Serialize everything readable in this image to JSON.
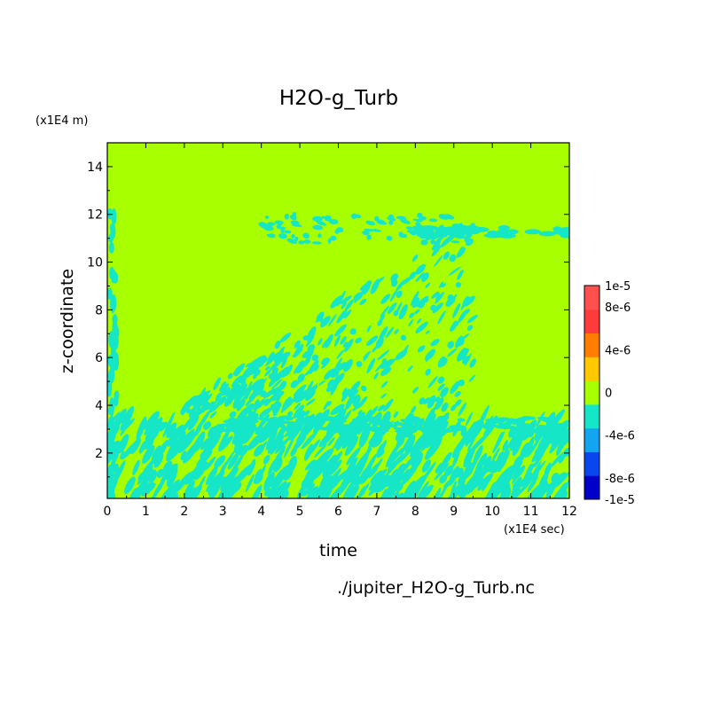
{
  "chart_data": {
    "type": "heatmap",
    "title": "H2O-g_Turb",
    "xlabel": "time",
    "ylabel": "z-coordinate",
    "x_unit": "(x1E4 sec)",
    "y_unit": "(x1E4 m)",
    "xlim": [
      0,
      12
    ],
    "ylim": [
      0.1,
      15
    ],
    "x_ticks": [
      "0",
      "1",
      "2",
      "3",
      "4",
      "5",
      "6",
      "7",
      "8",
      "9",
      "10",
      "11",
      "12"
    ],
    "y_ticks": [
      "2",
      "4",
      "6",
      "8",
      "10",
      "12",
      "14"
    ],
    "colorbar": {
      "range": [
        -1e-05,
        1e-05
      ],
      "tick_labels": [
        "1e-5",
        "8e-6",
        "4e-6",
        "0",
        "-4e-6",
        "-8e-6",
        "-1e-5"
      ],
      "colors": [
        "#0000c8",
        "#0a46f0",
        "#14a5f0",
        "#16e6c8",
        "#a8ff00",
        "#ffc800",
        "#ff7d00",
        "#ff3a3a",
        "#ff5050"
      ]
    },
    "field_description": "Values near 0 dominate; negative (~-2e-6) streaks in lower layer below z≈3.5 and in wavy bands between z≈4 and z≈12 for t between ~3 and ~9.5; persistent negative band at z≈11.2 from t≈8 to 12."
  },
  "footer": {
    "filename": "./jupiter_H2O-g_Turb.nc"
  }
}
